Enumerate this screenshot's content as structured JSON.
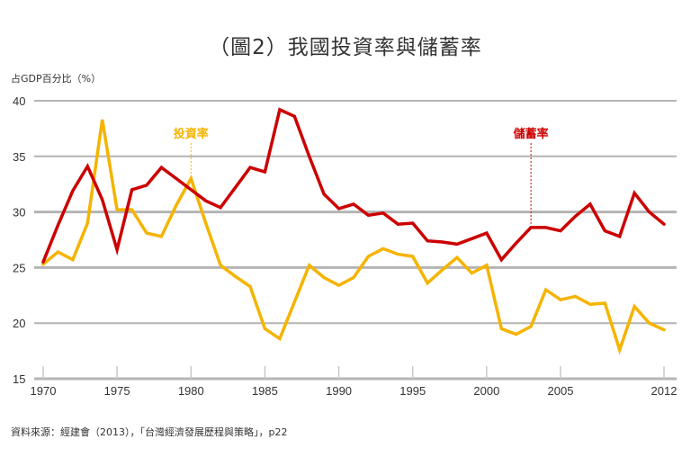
{
  "title": "（圖2）我國投資率與儲蓄率",
  "source": "資料來源：經建會（2013），「台灣經濟發展歷程與策略」，p22",
  "colors": {
    "investment": "#f5b400",
    "savings": "#cc0000",
    "grid": "#b4b4b4",
    "text": "#333333"
  },
  "chart_data": {
    "type": "line",
    "title": "（圖2）我國投資率與儲蓄率",
    "xlabel": "",
    "ylabel": "占GDP百分比（%）",
    "ylim": [
      15,
      40
    ],
    "xlim": [
      1970,
      2012
    ],
    "grid": true,
    "yticks": [
      "15",
      "20",
      "25",
      "30",
      "35",
      "40"
    ],
    "xticks": [
      "1970",
      "1975",
      "1980",
      "1985",
      "1990",
      "1995",
      "2000",
      "2005",
      "2012"
    ],
    "x": [
      1970,
      1971,
      1972,
      1973,
      1974,
      1975,
      1976,
      1977,
      1978,
      1979,
      1980,
      1981,
      1982,
      1983,
      1984,
      1985,
      1986,
      1987,
      1988,
      1989,
      1990,
      1991,
      1992,
      1993,
      1994,
      1995,
      1996,
      1997,
      1998,
      1999,
      2000,
      2001,
      2002,
      2003,
      2004,
      2005,
      2006,
      2007,
      2008,
      2009,
      2010,
      2011,
      2012
    ],
    "series": [
      {
        "name": "投資率",
        "label_year": 1980,
        "values": [
          25.3,
          26.4,
          25.7,
          29.0,
          38.3,
          30.2,
          30.2,
          28.1,
          27.8,
          30.6,
          33.0,
          29.0,
          25.2,
          24.2,
          23.3,
          19.5,
          18.6,
          21.9,
          25.2,
          24.1,
          23.4,
          24.1,
          26.0,
          26.7,
          26.2,
          26.0,
          23.6,
          24.8,
          25.9,
          24.5,
          25.2,
          19.5,
          19.0,
          19.7,
          23.0,
          22.1,
          22.4,
          21.7,
          21.8,
          17.6,
          21.5,
          20.0,
          19.4
        ]
      },
      {
        "name": "儲蓄率",
        "label_year": 2003,
        "values": [
          25.5,
          28.8,
          31.9,
          34.1,
          31.1,
          26.6,
          32.0,
          32.4,
          34.0,
          33.0,
          32.0,
          31.0,
          30.4,
          32.2,
          34.0,
          33.6,
          39.2,
          38.6,
          35.0,
          31.6,
          30.3,
          30.7,
          29.7,
          29.9,
          28.9,
          29.0,
          27.4,
          27.3,
          27.1,
          27.6,
          28.1,
          25.7,
          27.2,
          28.6,
          28.6,
          28.3,
          29.6,
          30.7,
          28.3,
          27.8,
          31.7,
          30.0,
          28.9
        ]
      }
    ]
  }
}
